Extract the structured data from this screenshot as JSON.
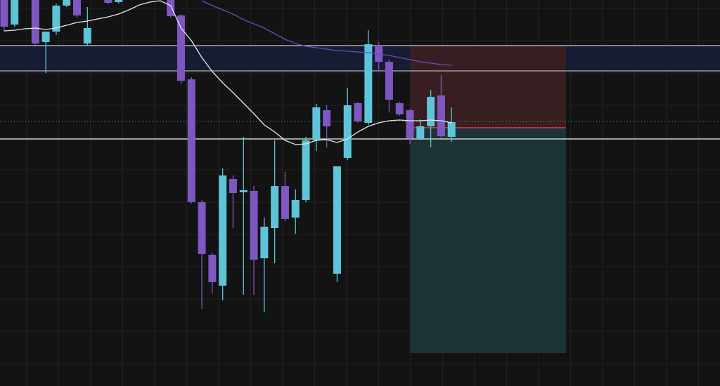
{
  "chart_data": {
    "type": "candlestick",
    "x": [
      0,
      1,
      2,
      3,
      4,
      5,
      6,
      7,
      8,
      9,
      10,
      11,
      12,
      13,
      14,
      15,
      16,
      17,
      18,
      19,
      20,
      21,
      22,
      23,
      24,
      25,
      26,
      27,
      28,
      29,
      30,
      31,
      32,
      33,
      34,
      35,
      36,
      37,
      38,
      39,
      40,
      41,
      42,
      43
    ],
    "open": [
      550,
      515,
      null,
      550,
      490,
      505,
      542,
      550,
      488,
      null,
      550,
      547,
      null,
      null,
      null,
      null,
      550,
      528,
      437,
      262,
      187,
      143,
      295,
      276,
      278,
      182,
      225,
      285,
      240,
      265,
      350,
      393,
      160,
      325,
      403,
      375,
      485,
      462,
      403,
      393,
      353,
      370,
      414,
      355
    ],
    "high": [
      550,
      550,
      null,
      550,
      505,
      545,
      550,
      550,
      540,
      null,
      550,
      550,
      null,
      null,
      null,
      null,
      550,
      530,
      440,
      265,
      190,
      310,
      300,
      355,
      285,
      240,
      350,
      305,
      280,
      355,
      402,
      400,
      313,
      425,
      405,
      507,
      490,
      465,
      405,
      395,
      380,
      422,
      443,
      397
    ],
    "low": [
      505,
      512,
      null,
      485,
      446,
      500,
      540,
      525,
      485,
      null,
      544,
      545,
      null,
      null,
      null,
      null,
      525,
      430,
      260,
      110,
      132,
      122,
      225,
      130,
      130,
      105,
      175,
      235,
      217,
      262,
      335,
      340,
      148,
      322,
      375,
      372,
      448,
      390,
      385,
      345,
      350,
      340,
      353,
      348
    ],
    "close": [
      512,
      550,
      null,
      488,
      505,
      542,
      550,
      528,
      510,
      null,
      546,
      550,
      null,
      null,
      null,
      null,
      527,
      435,
      262,
      188,
      148,
      300,
      275,
      279,
      180,
      227,
      285,
      238,
      265,
      350,
      397,
      370,
      313,
      400,
      377,
      487,
      462,
      408,
      387,
      353,
      370,
      412,
      356,
      376
    ],
    "up_color": "#5ec4d8",
    "down_color": "#7e57c2",
    "moving_averages": [
      {
        "color": "#e8e8e8",
        "values": [
          506,
          507,
          509,
          510,
          508,
          510,
          514,
          518,
          520,
          523,
          526,
          530,
          536,
          543,
          547,
          549,
          542,
          510,
          492,
          468,
          448,
          432,
          418,
          403,
          388,
          372,
          362,
          350,
          344,
          345,
          350,
          351,
          347,
          352,
          362,
          370,
          375,
          378,
          379,
          378,
          378,
          379,
          378,
          375
        ]
      },
      {
        "color": "#6a4bc0",
        "values": [
          null,
          null,
          null,
          null,
          null,
          null,
          null,
          null,
          null,
          null,
          null,
          null,
          null,
          null,
          null,
          null,
          null,
          null,
          null,
          549,
          542,
          536,
          530,
          522,
          516,
          510,
          502,
          494,
          488,
          484,
          482,
          480,
          478,
          477,
          476,
          475,
          473,
          471,
          468,
          465,
          462,
          460,
          458,
          457
        ]
      }
    ],
    "band": {
      "low": 449,
      "high": 485,
      "color": "#161c33"
    },
    "levels": [
      {
        "value": 485,
        "color": "#c8c8d0",
        "style": "solid"
      },
      {
        "value": 449,
        "color": "#b0b0b8",
        "style": "solid"
      },
      {
        "value": 352,
        "color": "#f0f0f0",
        "style": "solid"
      },
      {
        "value": 377,
        "color": "#4aa3b8",
        "style": "dotted"
      }
    ],
    "position": {
      "start": 39,
      "end": 54,
      "entry": 368,
      "stop": 485,
      "target": 47,
      "stop_color": "#3a1f22",
      "target_color": "#1c3538",
      "entry_color": "#b0383f"
    },
    "xlim": [
      -0.4,
      68.8
    ],
    "ylim": [
      0,
      550
    ],
    "grid": true
  }
}
